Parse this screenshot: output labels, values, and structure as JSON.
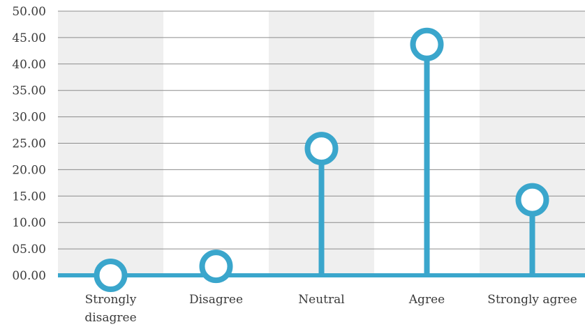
{
  "chart_data": {
    "type": "lollipop",
    "title": "",
    "xlabel": "",
    "ylabel": "",
    "categories": [
      "Strongly disagree",
      "Disagree",
      "Neutral",
      "Agree",
      "Strongly agree"
    ],
    "category_lines": [
      [
        "Strongly",
        "disagree"
      ],
      [
        "Disagree"
      ],
      [
        "Neutral"
      ],
      [
        "Agree"
      ],
      [
        "Strongly agree"
      ]
    ],
    "values": [
      0.0,
      1.7,
      24.0,
      43.7,
      14.3
    ],
    "ylim": [
      0,
      50
    ],
    "yticks": [
      "00.00",
      "05.00",
      "10.00",
      "15.00",
      "20.00",
      "25.00",
      "30.00",
      "35.00",
      "40.00",
      "45.00",
      "50.00"
    ],
    "grid": true,
    "alternating_band_color": "#efefef",
    "series_color": "#3aa6cc",
    "gridline_color": "#8c8c8c"
  }
}
